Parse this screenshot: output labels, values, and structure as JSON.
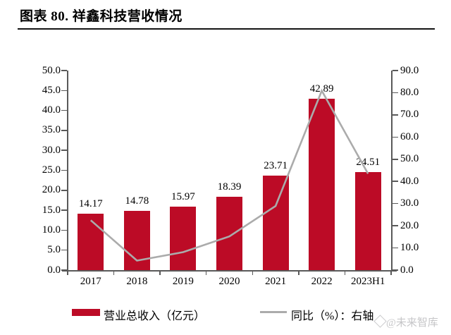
{
  "header": {
    "title": "图表 80. 祥鑫科技营收情况"
  },
  "chart_data": {
    "type": "bar",
    "subtype": "combo-bar-line-dual-axis",
    "categories": [
      "2017",
      "2018",
      "2019",
      "2020",
      "2021",
      "2022",
      "2023H1"
    ],
    "series": [
      {
        "name": "营业总收入（亿元）",
        "type": "bar",
        "axis": "left",
        "values": [
          14.17,
          14.78,
          15.97,
          18.39,
          23.71,
          42.89,
          24.51
        ],
        "data_labels": [
          "14.17",
          "14.78",
          "15.97",
          "18.39",
          "23.71",
          "42.89",
          "24.51"
        ]
      },
      {
        "name": "同比（%）：右轴",
        "type": "line",
        "axis": "right",
        "values": [
          22.5,
          4.3,
          8.1,
          15.2,
          28.9,
          80.9,
          43.5
        ]
      }
    ],
    "left_axis": {
      "min": 0,
      "max": 50,
      "step": 5,
      "tick_labels": [
        "0.0",
        "5.0",
        "10.0",
        "15.0",
        "20.0",
        "25.0",
        "30.0",
        "35.0",
        "40.0",
        "45.0",
        "50.0"
      ]
    },
    "right_axis": {
      "min": 0,
      "max": 90,
      "step": 10,
      "tick_labels": [
        "0.0",
        "10.0",
        "20.0",
        "30.0",
        "40.0",
        "50.0",
        "60.0",
        "70.0",
        "80.0",
        "90.0"
      ]
    },
    "grid": false,
    "legend_position": "bottom",
    "colors": {
      "bar": "#BC0B26",
      "line": "#ABABAB",
      "axis": "#595959"
    }
  },
  "legend": {
    "items": [
      {
        "label": "营业总收入（亿元）",
        "swatch": "bar"
      },
      {
        "label": "同比（%）：右轴",
        "swatch": "line"
      }
    ]
  },
  "watermark": {
    "text": "@未来智库"
  }
}
